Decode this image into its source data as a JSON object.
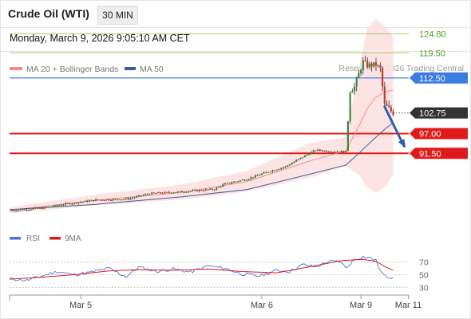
{
  "header": {
    "title": "Crude Oil (WTI)",
    "timeframe_button": "30 MIN",
    "datetime": "Monday, March 9, 2026 9:05:10 AM CET",
    "credit": "Research © 2026 Trading Central"
  },
  "colors": {
    "ma20": "#f28a8a",
    "ma50": "#3d5a99",
    "bollinger_fill": "#fde1e1",
    "resistance": "#8bc34a",
    "resistance_label": "#4aa31a",
    "pivot": "#3d7ce0",
    "support": "#e01a1a",
    "last_price_bg": "#333333",
    "rsi": "#4a72d6",
    "rsi_ma": "#e01a1a",
    "arrow": "#2f5da8"
  },
  "chart_data": [
    {
      "type": "candlestick",
      "legend": [
        "MA 20 + Bollinger Bands",
        "MA 50"
      ],
      "x_ticks": [
        "Mar 5",
        "Mar 6",
        "Mar 9",
        "Mar 11"
      ],
      "levels": [
        {
          "value": 124.8,
          "label": "124.80",
          "kind": "resistance"
        },
        {
          "value": 119.5,
          "label": "119.50",
          "kind": "resistance"
        },
        {
          "value": 112.5,
          "label": "112.50",
          "kind": "pivot"
        },
        {
          "value": 102.75,
          "label": "102.75",
          "kind": "last"
        },
        {
          "value": 97.0,
          "label": "97.00",
          "kind": "support"
        },
        {
          "value": 91.5,
          "label": "91.50",
          "kind": "support"
        }
      ],
      "anchors": [
        {
          "t": 0,
          "p": 75.5
        },
        {
          "t": 15,
          "p": 76.2
        },
        {
          "t": 25,
          "p": 77.3
        },
        {
          "t": 40,
          "p": 78.5
        },
        {
          "t": 55,
          "p": 78.8
        },
        {
          "t": 65,
          "p": 80.3
        },
        {
          "t": 80,
          "p": 80.8
        },
        {
          "t": 95,
          "p": 81.5
        },
        {
          "t": 100,
          "p": 83.0
        },
        {
          "t": 110,
          "p": 84.3
        },
        {
          "t": 120,
          "p": 86.4
        },
        {
          "t": 128,
          "p": 87.8
        },
        {
          "t": 136,
          "p": 90.5
        },
        {
          "t": 142,
          "p": 92.4
        },
        {
          "t": 150,
          "p": 92.0
        },
        {
          "t": 156,
          "p": 92.0
        },
        {
          "t": 158,
          "p": 109.0
        },
        {
          "t": 160,
          "p": 110.0
        },
        {
          "t": 162,
          "p": 113.5
        },
        {
          "t": 164,
          "p": 117.0
        },
        {
          "t": 166,
          "p": 116.0
        },
        {
          "t": 170,
          "p": 116.2
        },
        {
          "t": 172,
          "p": 115.0
        },
        {
          "t": 174,
          "p": 105.0
        },
        {
          "t": 178,
          "p": 102.75
        }
      ],
      "bands": [
        {
          "t": 0,
          "ma20": 75.6,
          "ma50": 75.8,
          "upper": 76.5,
          "lower": 74.8
        },
        {
          "t": 40,
          "ma20": 78.4,
          "ma50": 77.3,
          "upper": 80.0,
          "lower": 77.0
        },
        {
          "t": 80,
          "ma20": 80.6,
          "ma50": 79.4,
          "upper": 82.8,
          "lower": 78.6
        },
        {
          "t": 110,
          "ma20": 83.6,
          "ma50": 81.4,
          "upper": 86.6,
          "lower": 80.8
        },
        {
          "t": 140,
          "ma20": 89.5,
          "ma50": 85.8,
          "upper": 94.5,
          "lower": 84.8
        },
        {
          "t": 156,
          "ma20": 92.2,
          "ma50": 88.2,
          "upper": 96.0,
          "lower": 88.0
        },
        {
          "t": 162,
          "ma20": 99.0,
          "ma50": 91.5,
          "upper": 115.0,
          "lower": 85.5
        },
        {
          "t": 166,
          "ma20": 104.0,
          "ma50": 93.8,
          "upper": 126.5,
          "lower": 82.0
        },
        {
          "t": 170,
          "ma20": 107.2,
          "ma50": 96.0,
          "upper": 129.0,
          "lower": 80.5
        },
        {
          "t": 174,
          "ma20": 108.5,
          "ma50": 98.2,
          "upper": 127.0,
          "lower": 82.0
        },
        {
          "t": 178,
          "ma20": 109.2,
          "ma50": 100.0,
          "upper": 124.0,
          "lower": 85.5
        }
      ],
      "forecast_arrow": {
        "from_t": 174,
        "from_p": 104.5,
        "to_t": 183,
        "to_p": 93.5
      },
      "tick_positions": [
        {
          "label": "Mar 5",
          "t": 33
        },
        {
          "label": "Mar 6",
          "t": 117
        },
        {
          "label": "Mar 9",
          "t": 163
        },
        {
          "label": "Mar 11",
          "t": 185
        }
      ]
    },
    {
      "type": "line",
      "legend": [
        "RSI",
        "9MA"
      ],
      "y_ticks": [
        70,
        50,
        30
      ],
      "rsi": [
        [
          0,
          44
        ],
        [
          8,
          41
        ],
        [
          14,
          47
        ],
        [
          22,
          55
        ],
        [
          30,
          50
        ],
        [
          38,
          54
        ],
        [
          46,
          60
        ],
        [
          54,
          47
        ],
        [
          60,
          62
        ],
        [
          68,
          55
        ],
        [
          76,
          59
        ],
        [
          84,
          54
        ],
        [
          92,
          64
        ],
        [
          100,
          60
        ],
        [
          108,
          51
        ],
        [
          116,
          48
        ],
        [
          124,
          57
        ],
        [
          130,
          55
        ],
        [
          136,
          66
        ],
        [
          142,
          62
        ],
        [
          148,
          71
        ],
        [
          154,
          70
        ],
        [
          156,
          60
        ],
        [
          160,
          74
        ],
        [
          164,
          78
        ],
        [
          168,
          76
        ],
        [
          170,
          72
        ],
        [
          172,
          56
        ],
        [
          174,
          48
        ],
        [
          177,
          46
        ],
        [
          178,
          47
        ]
      ],
      "rsi_ma": [
        [
          0,
          43
        ],
        [
          14,
          46
        ],
        [
          30,
          50
        ],
        [
          46,
          56
        ],
        [
          60,
          58
        ],
        [
          76,
          57
        ],
        [
          92,
          59
        ],
        [
          108,
          55
        ],
        [
          124,
          53
        ],
        [
          140,
          63
        ],
        [
          154,
          72
        ],
        [
          164,
          74
        ],
        [
          170,
          71
        ],
        [
          174,
          63
        ],
        [
          178,
          57
        ]
      ]
    }
  ]
}
